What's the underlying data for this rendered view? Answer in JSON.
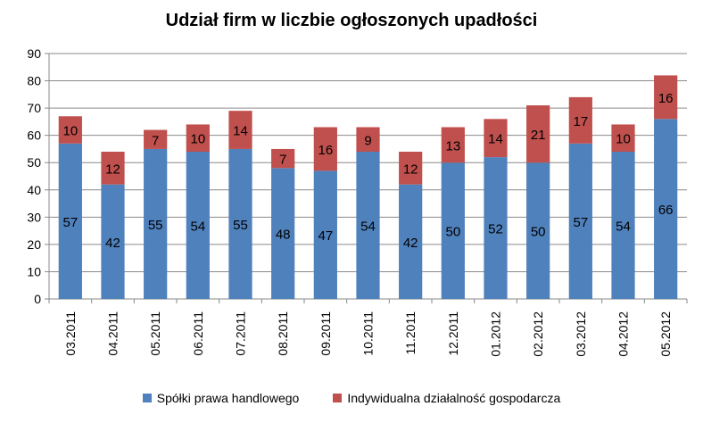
{
  "chart_data": {
    "type": "bar",
    "stacked": true,
    "title": "Udział firm w liczbie ogłoszonych upadłości",
    "xlabel": "",
    "ylabel": "",
    "ylim": [
      0,
      90
    ],
    "yticks": [
      0,
      10,
      20,
      30,
      40,
      50,
      60,
      70,
      80,
      90
    ],
    "grid": true,
    "legend_position": "bottom",
    "categories": [
      "03.2011",
      "04.2011",
      "05.2011",
      "06.2011",
      "07.2011",
      "08.2011",
      "09.2011",
      "10.2011",
      "11.2011",
      "12.2011",
      "01.2012",
      "02.2012",
      "03.2012",
      "04.2012",
      "05.2012"
    ],
    "series": [
      {
        "name": "Spółki prawa handlowego",
        "color": "#4f81bd",
        "values": [
          57,
          42,
          55,
          54,
          55,
          48,
          47,
          54,
          42,
          50,
          52,
          50,
          57,
          54,
          66
        ]
      },
      {
        "name": "Indywidualna działalność gospodarcza",
        "color": "#c0504d",
        "values": [
          10,
          12,
          7,
          10,
          14,
          7,
          16,
          9,
          12,
          13,
          14,
          21,
          17,
          10,
          16
        ]
      }
    ]
  }
}
